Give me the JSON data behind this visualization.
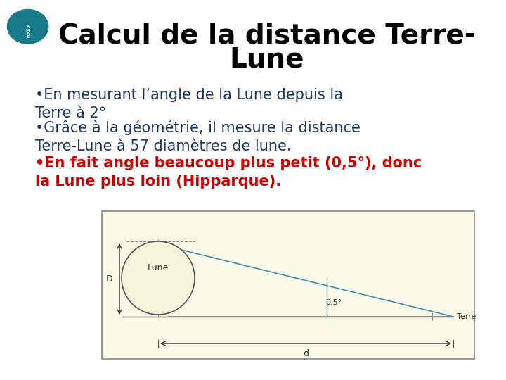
{
  "title_line1": "Calcul de la distance Terre-",
  "title_line2": "Lune",
  "title_color": "#000000",
  "title_fontsize": 28,
  "title_fontfamily": "Arial",
  "title_fontweight": "bold",
  "bullet1_text": "•En mesurant l’angle de la Lune depuis la Terre à 2°",
  "bullet2_text": "•Grâce à la géométrie, il mesure la distance Terre-Lune à 57 diamètres de lune.",
  "bullet3_text": "•En fait angle beaucoup plus petit (0,5°), donc la Lune plus loin (Hipparque).",
  "bullet1_color": "#1F3864",
  "bullet2_color": "#1F3864",
  "bullet3_color": "#CC0000",
  "bullet_fontsize": 15,
  "background_color": "#FFFFFF",
  "diagram_bg": "#FAFAE8",
  "diagram_border": "#888888",
  "diagram_line_color": "#4a8ca8",
  "diagram_text_color": "#333333",
  "logo_present": true
}
